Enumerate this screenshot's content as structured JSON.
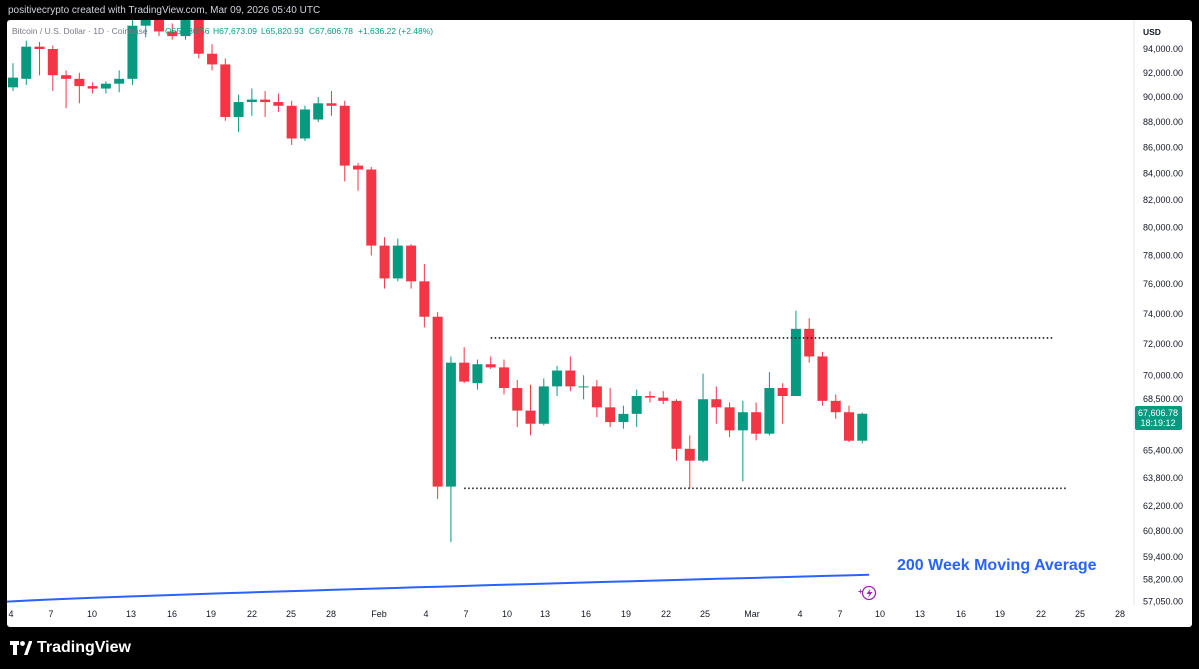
{
  "header": {
    "credit": "positivecrypto created with TradingView.com, Mar 09, 2026 05:40 UTC"
  },
  "footer": {
    "brand": "TradingView"
  },
  "colors": {
    "up": "#089981",
    "down": "#f23645",
    "ma": "#2962ff",
    "background": "#ffffff"
  },
  "chart_data": {
    "type": "candlestick",
    "symbol_line": "Bitcoin / U.S. Dollar · 1D · Coinbase",
    "ohlc_readout": {
      "open": "O65,980.56",
      "high": "H67,673.09",
      "low": "L65,820.93",
      "close": "C67,606.78",
      "change": "+1,636.22 (+2.48%)"
    },
    "currency": "USD",
    "y_scale": "log",
    "y_ticks": [
      "94,000.00",
      "92,000.00",
      "90,000.00",
      "88,000.00",
      "86,000.00",
      "84,000.00",
      "82,000.00",
      "80,000.00",
      "78,000.00",
      "76,000.00",
      "74,000.00",
      "72,000.00",
      "70,000.00",
      "68,500.00",
      "65,400.00",
      "63,800.00",
      "62,200.00",
      "60,800.00",
      "59,400.00",
      "58,200.00",
      "57,050.00"
    ],
    "x_ticks": [
      "4",
      "7",
      "10",
      "13",
      "16",
      "19",
      "22",
      "25",
      "28",
      "Feb",
      "4",
      "7",
      "10",
      "13",
      "16",
      "19",
      "22",
      "25",
      "Mar",
      "4",
      "7",
      "10",
      "13",
      "16",
      "19",
      "22",
      "25",
      "28"
    ],
    "last_price": "67,606.78",
    "countdown": "18:19:12",
    "annotation": "200 Week Moving Average",
    "range_lines": [
      {
        "style": "dotted",
        "value": 72400
      },
      {
        "style": "dotted",
        "value": 63200
      }
    ],
    "candles": [
      {
        "o": 90800,
        "h": 92800,
        "l": 90500,
        "c": 91600
      },
      {
        "o": 91500,
        "h": 94700,
        "l": 91000,
        "c": 94200
      },
      {
        "o": 94200,
        "h": 94600,
        "l": 91800,
        "c": 94000
      },
      {
        "o": 94000,
        "h": 94300,
        "l": 90500,
        "c": 91800
      },
      {
        "o": 91800,
        "h": 92200,
        "l": 89100,
        "c": 91500
      },
      {
        "o": 91500,
        "h": 92000,
        "l": 89500,
        "c": 90900
      },
      {
        "o": 90900,
        "h": 91200,
        "l": 90300,
        "c": 90700
      },
      {
        "o": 90700,
        "h": 91300,
        "l": 90300,
        "c": 91100
      },
      {
        "o": 91100,
        "h": 92200,
        "l": 90400,
        "c": 91500
      },
      {
        "o": 91500,
        "h": 97000,
        "l": 91000,
        "c": 96000
      },
      {
        "o": 96000,
        "h": 97200,
        "l": 95000,
        "c": 97000
      },
      {
        "o": 97000,
        "h": 97400,
        "l": 95100,
        "c": 95500
      },
      {
        "o": 95500,
        "h": 96200,
        "l": 94800,
        "c": 95100
      },
      {
        "o": 95100,
        "h": 96800,
        "l": 94800,
        "c": 96500
      },
      {
        "o": 96500,
        "h": 97000,
        "l": 93200,
        "c": 93600
      },
      {
        "o": 93600,
        "h": 94400,
        "l": 92200,
        "c": 92700
      },
      {
        "o": 92700,
        "h": 93200,
        "l": 88100,
        "c": 88400
      },
      {
        "o": 88400,
        "h": 90200,
        "l": 87200,
        "c": 89600
      },
      {
        "o": 89600,
        "h": 90700,
        "l": 88500,
        "c": 89800
      },
      {
        "o": 89800,
        "h": 90500,
        "l": 88400,
        "c": 89600
      },
      {
        "o": 89600,
        "h": 90300,
        "l": 88800,
        "c": 89300
      },
      {
        "o": 89300,
        "h": 89700,
        "l": 86200,
        "c": 86700
      },
      {
        "o": 86700,
        "h": 89300,
        "l": 86500,
        "c": 89000
      },
      {
        "o": 88200,
        "h": 90000,
        "l": 88000,
        "c": 89500
      },
      {
        "o": 89500,
        "h": 90500,
        "l": 88500,
        "c": 89300
      },
      {
        "o": 89300,
        "h": 89700,
        "l": 83400,
        "c": 84600
      },
      {
        "o": 84600,
        "h": 84800,
        "l": 82700,
        "c": 84300
      },
      {
        "o": 84300,
        "h": 84500,
        "l": 78000,
        "c": 78700
      },
      {
        "o": 78700,
        "h": 79300,
        "l": 75700,
        "c": 76400
      },
      {
        "o": 76400,
        "h": 79200,
        "l": 76200,
        "c": 78700
      },
      {
        "o": 78700,
        "h": 78800,
        "l": 75700,
        "c": 76200
      },
      {
        "o": 76200,
        "h": 77400,
        "l": 73100,
        "c": 73800
      },
      {
        "o": 73800,
        "h": 74100,
        "l": 62600,
        "c": 63300
      },
      {
        "o": 63300,
        "h": 71200,
        "l": 60200,
        "c": 70800
      },
      {
        "o": 70800,
        "h": 71800,
        "l": 69500,
        "c": 69600
      },
      {
        "o": 69500,
        "h": 71000,
        "l": 69100,
        "c": 70700
      },
      {
        "o": 70700,
        "h": 71200,
        "l": 70400,
        "c": 70500
      },
      {
        "o": 70500,
        "h": 71000,
        "l": 68800,
        "c": 69200
      },
      {
        "o": 69200,
        "h": 69700,
        "l": 66800,
        "c": 67800
      },
      {
        "o": 67800,
        "h": 69400,
        "l": 66300,
        "c": 67000
      },
      {
        "o": 67000,
        "h": 69800,
        "l": 66900,
        "c": 69300
      },
      {
        "o": 69300,
        "h": 70600,
        "l": 68700,
        "c": 70300
      },
      {
        "o": 70300,
        "h": 71200,
        "l": 69000,
        "c": 69300
      },
      {
        "o": 69300,
        "h": 70000,
        "l": 68500,
        "c": 69300
      },
      {
        "o": 69300,
        "h": 69700,
        "l": 67400,
        "c": 68000
      },
      {
        "o": 68000,
        "h": 69200,
        "l": 66800,
        "c": 67100
      },
      {
        "o": 67100,
        "h": 68100,
        "l": 66700,
        "c": 67600
      },
      {
        "o": 67600,
        "h": 69100,
        "l": 66800,
        "c": 68700
      },
      {
        "o": 68700,
        "h": 69000,
        "l": 68300,
        "c": 68600
      },
      {
        "o": 68600,
        "h": 69000,
        "l": 68200,
        "c": 68400
      },
      {
        "o": 68400,
        "h": 68500,
        "l": 64800,
        "c": 65500
      },
      {
        "o": 65500,
        "h": 66300,
        "l": 63200,
        "c": 64800
      },
      {
        "o": 64800,
        "h": 70100,
        "l": 64700,
        "c": 68500
      },
      {
        "o": 68500,
        "h": 69300,
        "l": 67000,
        "c": 68000
      },
      {
        "o": 68000,
        "h": 68300,
        "l": 66200,
        "c": 66600
      },
      {
        "o": 66600,
        "h": 68400,
        "l": 63600,
        "c": 67700
      },
      {
        "o": 67700,
        "h": 68300,
        "l": 66000,
        "c": 66400
      },
      {
        "o": 66400,
        "h": 70200,
        "l": 66300,
        "c": 69200
      },
      {
        "o": 69200,
        "h": 69500,
        "l": 67000,
        "c": 68700
      },
      {
        "o": 68700,
        "h": 74200,
        "l": 68700,
        "c": 73000
      },
      {
        "o": 73000,
        "h": 73700,
        "l": 70800,
        "c": 71200
      },
      {
        "o": 71200,
        "h": 71500,
        "l": 68100,
        "c": 68400
      },
      {
        "o": 68400,
        "h": 68800,
        "l": 67300,
        "c": 67700
      },
      {
        "o": 67700,
        "h": 68100,
        "l": 65900,
        "c": 65980
      },
      {
        "o": 65980.56,
        "h": 67673.09,
        "l": 65820.93,
        "c": 67606.78
      }
    ],
    "moving_average": {
      "name": "200 Week Moving Average",
      "start": 57050,
      "end": 58450
    }
  }
}
